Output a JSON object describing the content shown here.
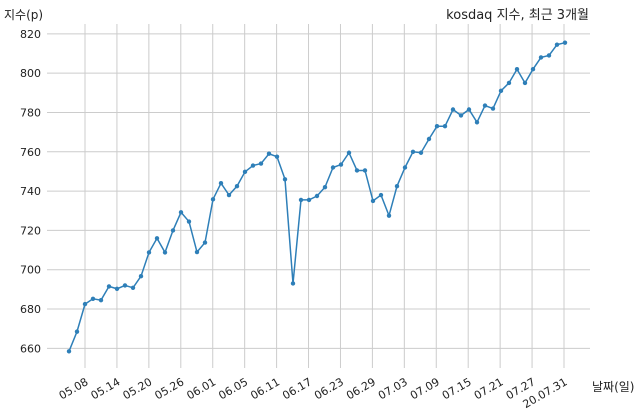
{
  "chart_data": {
    "type": "line",
    "title": "kosdaq 지수, 최근 3개월",
    "ylabel": "지수(p)",
    "xlabel": "날짜(일)",
    "ylim": [
      650,
      825
    ],
    "yticks": [
      660,
      680,
      700,
      720,
      740,
      760,
      780,
      800,
      820
    ],
    "grid": true,
    "line_color": "#2e7fb8",
    "xticks": [
      "05.08",
      "05.14",
      "05.20",
      "05.26",
      "06.01",
      "06.05",
      "06.11",
      "06.17",
      "06.23",
      "06.29",
      "07.03",
      "07.09",
      "07.15",
      "07.21",
      "07.27",
      "20.07.31"
    ],
    "values": [
      658.5,
      668.5,
      682.5,
      685.2,
      684.5,
      691.5,
      690.3,
      692.0,
      690.8,
      696.7,
      708.8,
      716.0,
      708.8,
      720.0,
      729.2,
      724.5,
      709.0,
      713.8,
      735.8,
      744.0,
      738.0,
      742.5,
      749.8,
      753.0,
      754.0,
      759.0,
      757.5,
      746.0,
      693.0,
      735.5,
      735.5,
      737.5,
      742.0,
      752.0,
      753.5,
      759.5,
      750.5,
      750.5,
      735.0,
      738.0,
      727.5,
      742.5,
      752.0,
      760.0,
      759.5,
      766.5,
      773.0,
      773.0,
      781.5,
      778.5,
      781.5,
      775.0,
      783.5,
      782.0,
      791.0,
      795.0,
      802.0,
      795.0,
      802.0,
      808.0,
      809.0,
      814.5,
      815.5
    ]
  }
}
